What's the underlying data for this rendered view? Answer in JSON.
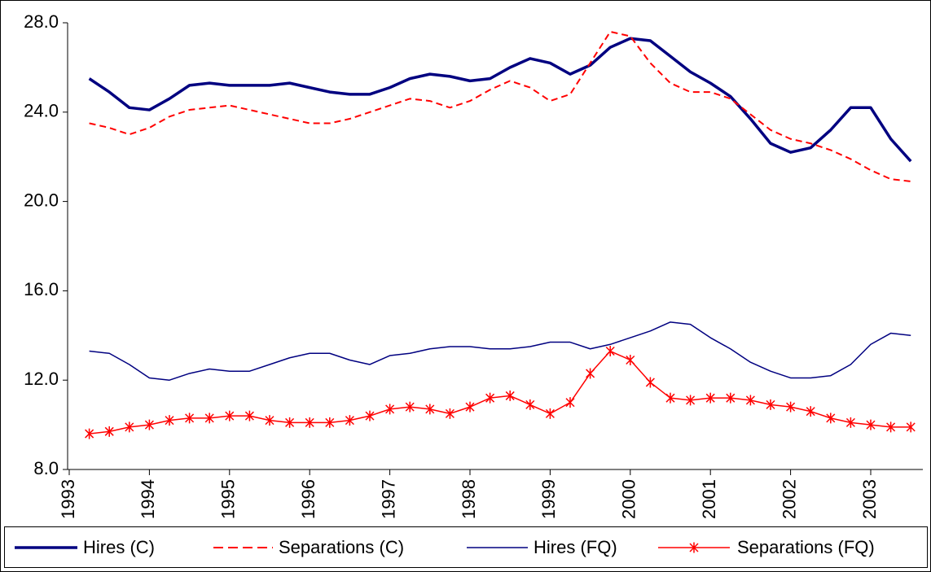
{
  "chart_data": {
    "type": "line",
    "categories": [
      "1993",
      null,
      null,
      null,
      "1994",
      null,
      null,
      null,
      "1995",
      null,
      null,
      null,
      "1996",
      null,
      null,
      null,
      "1997",
      null,
      null,
      null,
      "1998",
      null,
      null,
      null,
      "1999",
      null,
      null,
      null,
      "2000",
      null,
      null,
      null,
      "2001",
      null,
      null,
      null,
      "2002",
      null,
      null,
      null,
      "2003",
      null,
      null
    ],
    "series": [
      {
        "name": "Hires (C)",
        "color": "#000080",
        "style": "solid",
        "weight": "thick",
        "values": [
          null,
          25.5,
          24.9,
          24.2,
          24.1,
          24.6,
          25.2,
          25.3,
          25.2,
          25.2,
          25.2,
          25.3,
          25.1,
          24.9,
          24.8,
          24.8,
          25.1,
          25.5,
          25.7,
          25.6,
          25.4,
          25.5,
          26.0,
          26.4,
          26.2,
          25.7,
          26.1,
          26.9,
          27.3,
          27.2,
          26.5,
          25.8,
          25.3,
          24.7,
          23.7,
          22.6,
          22.2,
          22.4,
          23.2,
          24.2,
          24.2,
          22.8,
          21.8
        ]
      },
      {
        "name": "Separations (C)",
        "color": "#ff0000",
        "style": "dashed",
        "weight": "medium",
        "values": [
          null,
          23.5,
          23.3,
          23.0,
          23.3,
          23.8,
          24.1,
          24.2,
          24.3,
          24.1,
          23.9,
          23.7,
          23.5,
          23.5,
          23.7,
          24.0,
          24.3,
          24.6,
          24.5,
          24.2,
          24.5,
          25.0,
          25.4,
          25.1,
          24.5,
          24.8,
          26.2,
          27.6,
          27.4,
          26.2,
          25.3,
          24.9,
          24.9,
          24.6,
          23.9,
          23.2,
          22.8,
          22.6,
          22.3,
          21.9,
          21.4,
          21.0,
          20.9
        ]
      },
      {
        "name": "Hires (FQ)",
        "color": "#000080",
        "style": "solid",
        "weight": "thin",
        "values": [
          null,
          13.3,
          13.2,
          12.7,
          12.1,
          12.0,
          12.3,
          12.5,
          12.4,
          12.4,
          12.7,
          13.0,
          13.2,
          13.2,
          12.9,
          12.7,
          13.1,
          13.2,
          13.4,
          13.5,
          13.5,
          13.4,
          13.4,
          13.5,
          13.7,
          13.7,
          13.4,
          13.6,
          13.9,
          14.2,
          14.6,
          14.5,
          13.9,
          13.4,
          12.8,
          12.4,
          12.1,
          12.1,
          12.2,
          12.7,
          13.6,
          14.1,
          14.0
        ]
      },
      {
        "name": "Separations (FQ)",
        "color": "#ff0000",
        "style": "solid",
        "weight": "thin",
        "marker": "star",
        "values": [
          null,
          9.6,
          9.7,
          9.9,
          10.0,
          10.2,
          10.3,
          10.3,
          10.4,
          10.4,
          10.2,
          10.1,
          10.1,
          10.1,
          10.2,
          10.4,
          10.7,
          10.8,
          10.7,
          10.5,
          10.8,
          11.2,
          11.3,
          10.9,
          10.5,
          11.0,
          12.3,
          13.3,
          12.9,
          11.9,
          11.2,
          11.1,
          11.2,
          11.2,
          11.1,
          10.9,
          10.8,
          10.6,
          10.3,
          10.1,
          10.0,
          9.9,
          9.9
        ]
      }
    ],
    "ylim": [
      8,
      28
    ],
    "yticks": [
      {
        "value": 8,
        "label": "8.0"
      },
      {
        "value": 12,
        "label": "12.0"
      },
      {
        "value": 16,
        "label": "16.0"
      },
      {
        "value": 20,
        "label": "20.0"
      },
      {
        "value": 24,
        "label": "24.0"
      },
      {
        "value": 28,
        "label": "28.0"
      }
    ],
    "grid": false,
    "legend": "bottom"
  }
}
